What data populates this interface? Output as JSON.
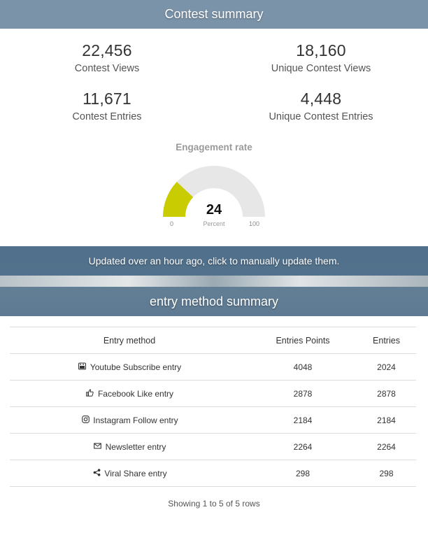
{
  "contest_summary": {
    "title": "Contest summary",
    "stats": [
      {
        "value": "22,456",
        "label": "Contest Views"
      },
      {
        "value": "18,160",
        "label": "Unique Contest Views"
      },
      {
        "value": "11,671",
        "label": "Contest Entries"
      },
      {
        "value": "4,448",
        "label": "Unique Contest Entries"
      }
    ],
    "gauge": {
      "title": "Engagement rate",
      "value": 24,
      "display_value": "24",
      "unit": "Percent",
      "min": 0,
      "max": 100,
      "min_label": "0",
      "max_label": "100",
      "fill_color": "#c8cc00",
      "track_color": "#e8e7e7"
    }
  },
  "update_bar": {
    "text": "Updated over an hour ago, click to manually update them."
  },
  "entry_method_summary": {
    "title": "entry method summary",
    "columns": [
      "Entry method",
      "Entries Points",
      "Entries"
    ],
    "rows": [
      {
        "icon": "youtube-icon",
        "method": "Youtube Subscribe entry",
        "points": "4048",
        "entries": "2024"
      },
      {
        "icon": "thumbs-up-icon",
        "method": "Facebook Like entry",
        "points": "2878",
        "entries": "2878"
      },
      {
        "icon": "instagram-icon",
        "method": "Instagram Follow entry",
        "points": "2184",
        "entries": "2184"
      },
      {
        "icon": "envelope-icon",
        "method": "Newsletter entry",
        "points": "2264",
        "entries": "2264"
      },
      {
        "icon": "share-icon",
        "method": "Viral Share entry",
        "points": "298",
        "entries": "298"
      }
    ],
    "footer": "Showing 1 to 5 of 5 rows"
  },
  "colors": {
    "header": "#7b93a9",
    "update_bar": "#496986",
    "gauge_fill": "#c8cc00"
  }
}
